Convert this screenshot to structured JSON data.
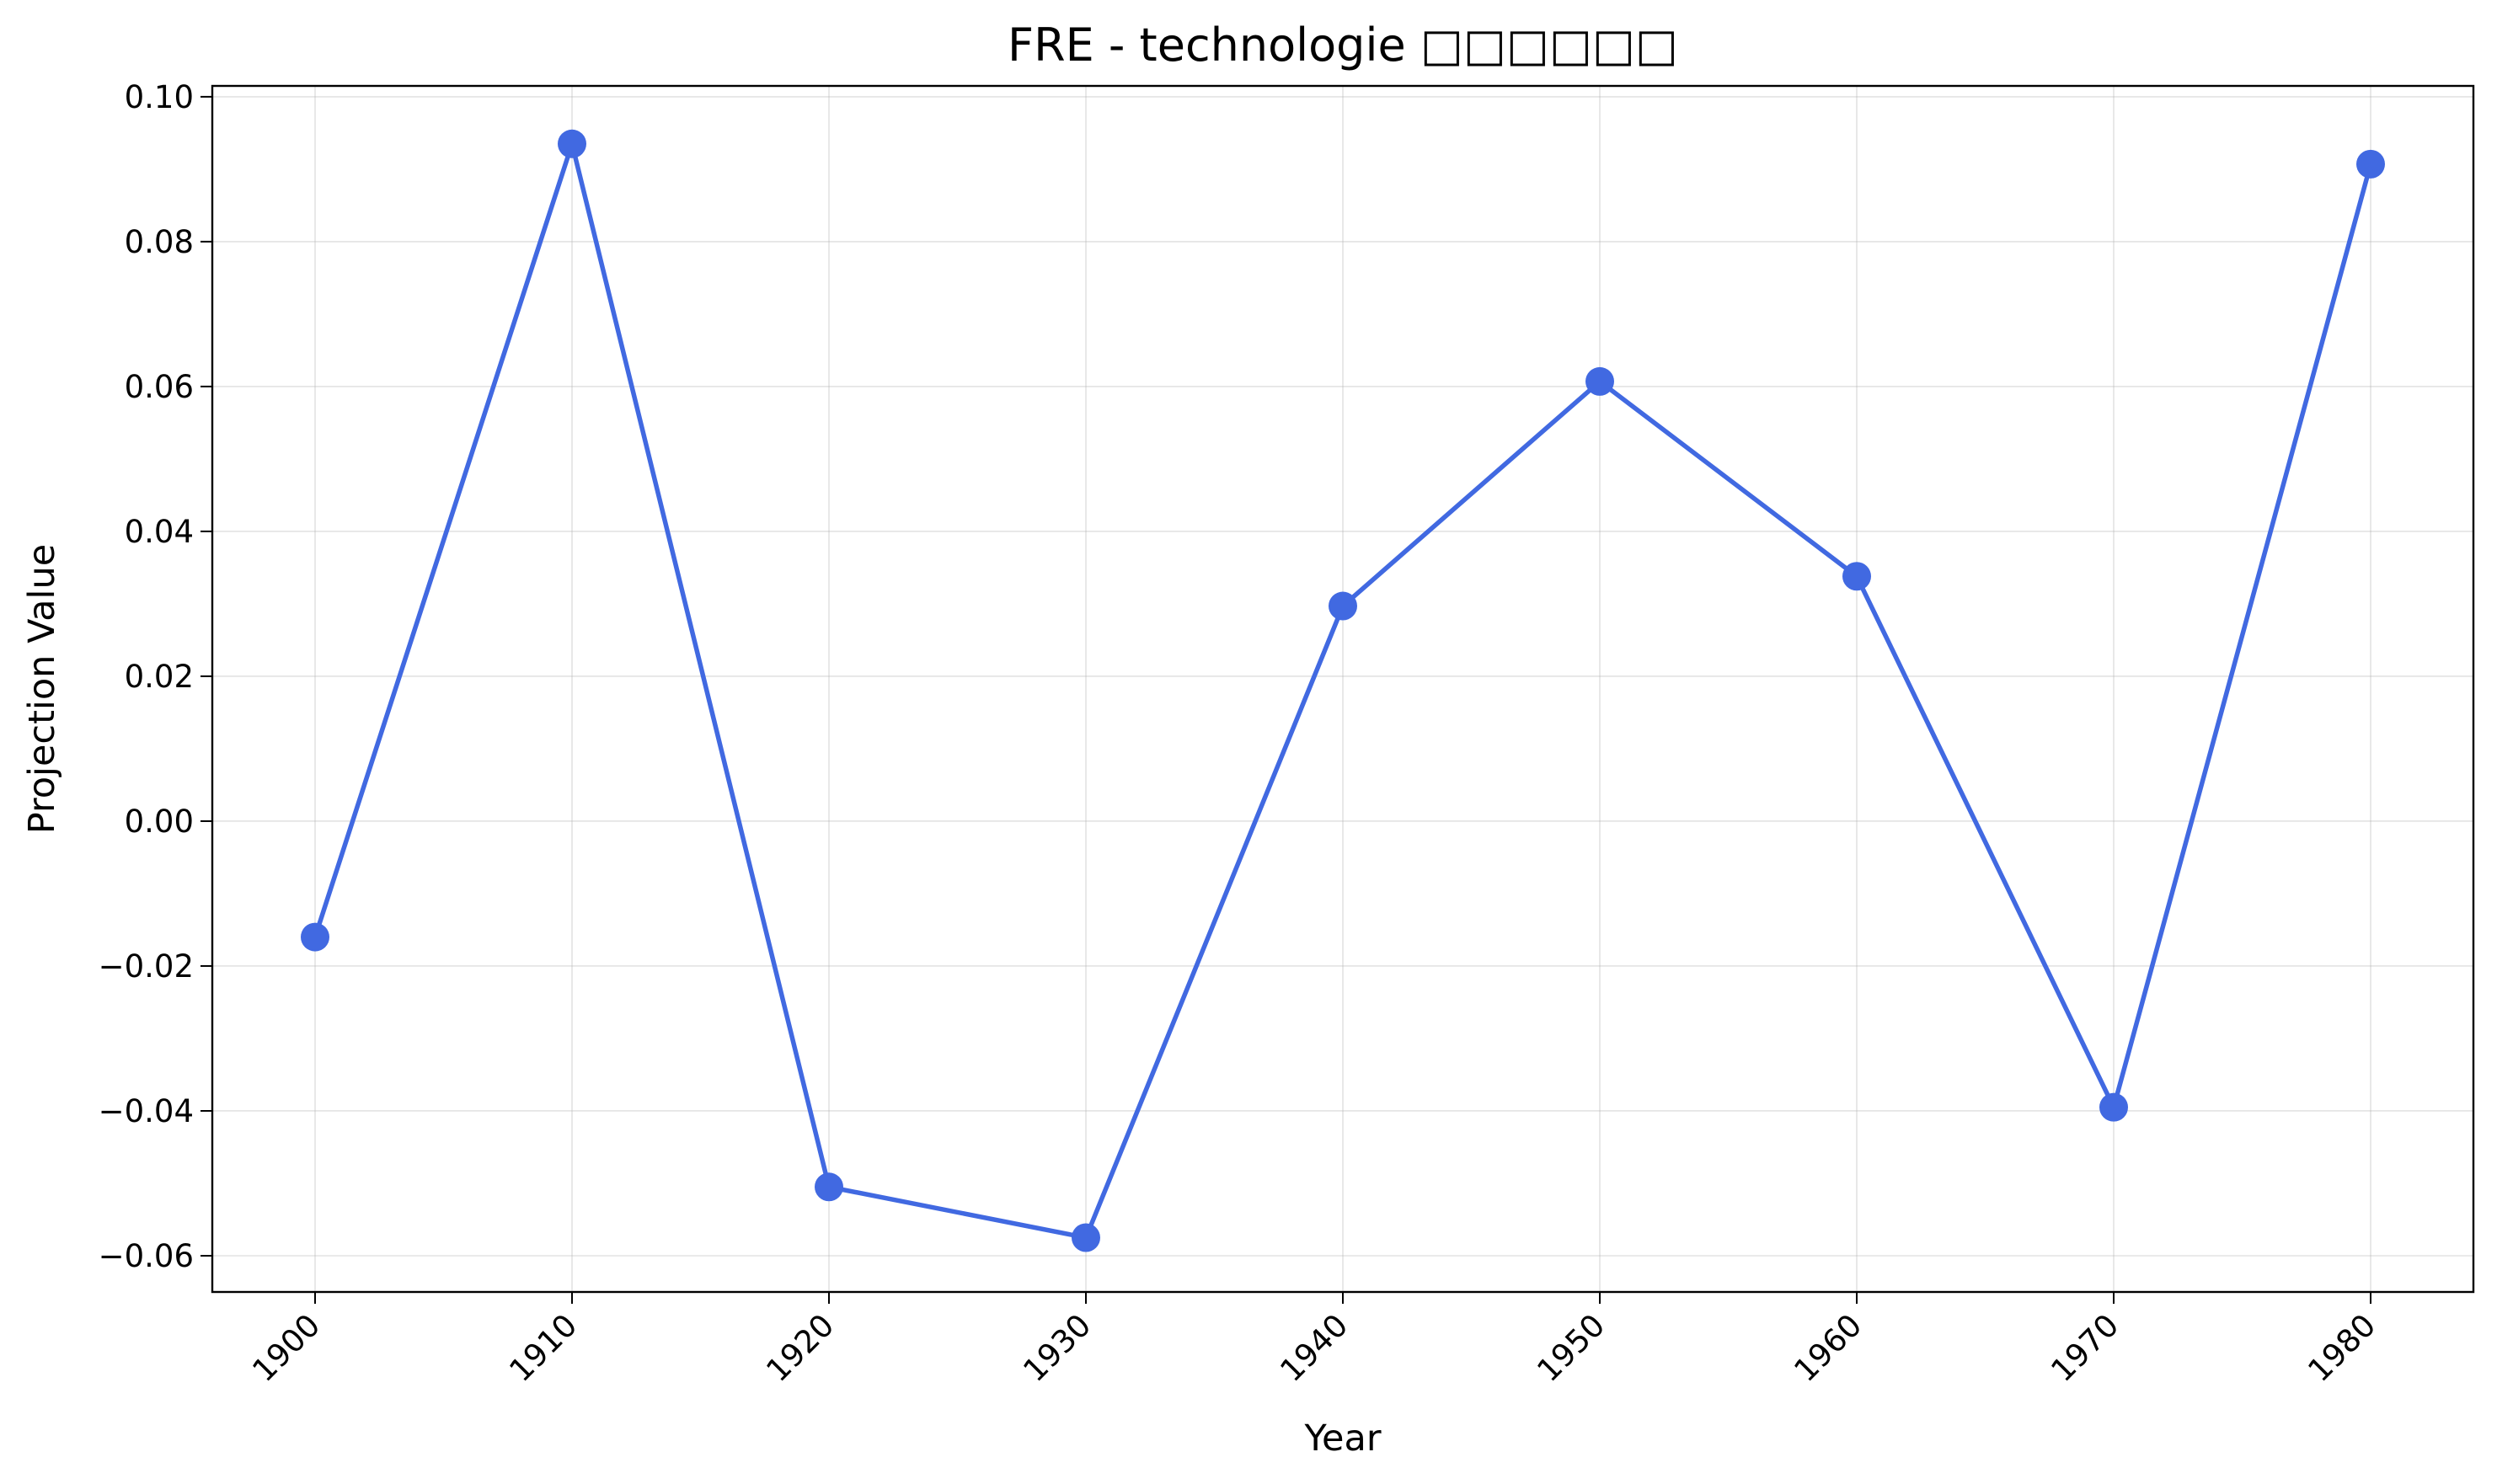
{
  "chart_data": {
    "type": "line",
    "title": "FRE - technologie □□□□□□",
    "xlabel": "Year",
    "ylabel": "Projection Value",
    "x": [
      1900,
      1910,
      1920,
      1930,
      1940,
      1950,
      1960,
      1970,
      1980
    ],
    "series": [
      {
        "values": [
          -0.016,
          0.0935,
          -0.0505,
          -0.0575,
          0.0297,
          0.0607,
          0.0338,
          -0.0395,
          0.0907
        ]
      }
    ],
    "xticks": [
      "1900",
      "1910",
      "1920",
      "1930",
      "1940",
      "1950",
      "1960",
      "1970",
      "1980"
    ],
    "yticks": [
      -0.06,
      -0.04,
      -0.02,
      0.0,
      0.02,
      0.04,
      0.06,
      0.08,
      0.1
    ],
    "ytick_labels": [
      "−0.06",
      "−0.04",
      "−0.02",
      "0.00",
      "0.02",
      "0.04",
      "0.06",
      "0.08",
      "0.10"
    ],
    "xlim": [
      1896,
      1984
    ],
    "ylim": [
      -0.065,
      0.1015
    ],
    "grid": true,
    "legend": "none",
    "line_color": "#4169E1"
  }
}
